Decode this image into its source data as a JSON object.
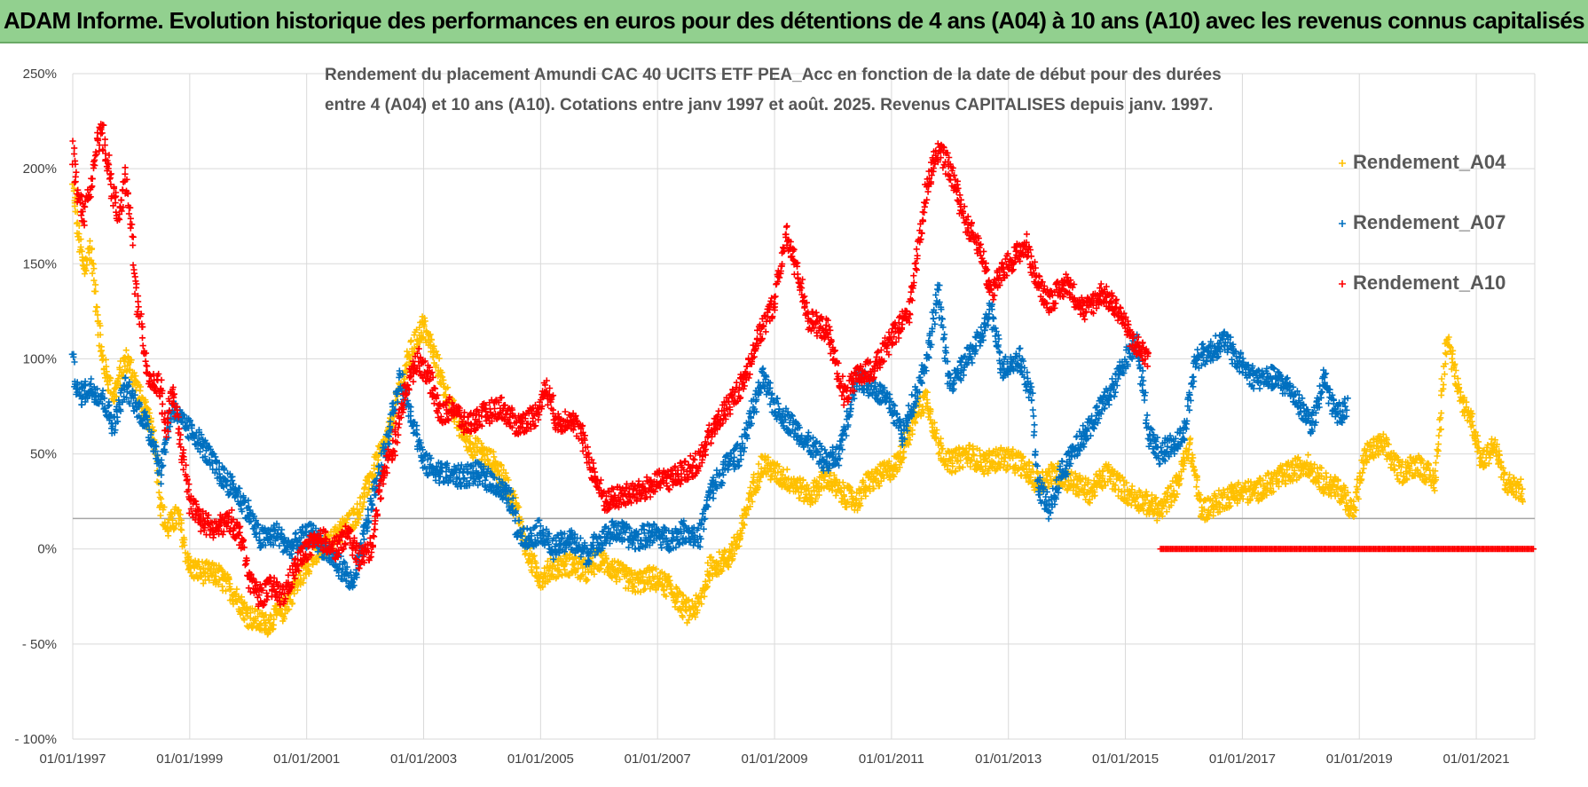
{
  "header": {
    "title": "ADAM Informe. Evolution historique des performances en euros pour des détentions de 4 ans (A04) à 10 ans (A10) avec les revenus connus capitalisés"
  },
  "chart_data": {
    "type": "scatter",
    "subtitle_lines": [
      "Rendement du placement Amundi CAC 40 UCITS ETF PEA_Acc en fonction de la date de début pour des durées",
      "entre 4 (A04) et 10 ans (A10).  Cotations entre janv 1997 et août. 2025. Revenus CAPITALISES depuis janv. 1997."
    ],
    "x_ticks": [
      "01/01/1997",
      "01/01/1999",
      "01/01/2001",
      "01/01/2003",
      "01/01/2005",
      "01/01/2007",
      "01/01/2009",
      "01/01/2011",
      "01/01/2013",
      "01/01/2015",
      "01/01/2017",
      "01/01/2019",
      "01/01/2021"
    ],
    "y_ticks": [
      "250%",
      "200%",
      "150%",
      "100%",
      "50%",
      "0%",
      "- 50%",
      "- 100%"
    ],
    "x_range": [
      1997.0,
      2022.0
    ],
    "ylim": [
      -100,
      250
    ],
    "reference_line_y": 16,
    "grid": true,
    "legend_position": "top-right",
    "series": [
      {
        "name": "Rendement_A04",
        "color": "#ffc000",
        "points": [
          [
            1997.0,
            190
          ],
          [
            1997.1,
            165
          ],
          [
            1997.2,
            145
          ],
          [
            1997.3,
            160
          ],
          [
            1997.5,
            100
          ],
          [
            1997.7,
            80
          ],
          [
            1997.9,
            100
          ],
          [
            1998.0,
            95
          ],
          [
            1998.2,
            75
          ],
          [
            1998.4,
            60
          ],
          [
            1998.5,
            25
          ],
          [
            1998.6,
            10
          ],
          [
            1998.8,
            18
          ],
          [
            1999.0,
            -10
          ],
          [
            1999.2,
            -12
          ],
          [
            1999.5,
            -14
          ],
          [
            1999.8,
            -25
          ],
          [
            2000.0,
            -35
          ],
          [
            2000.3,
            -40
          ],
          [
            2000.6,
            -32
          ],
          [
            2000.8,
            -20
          ],
          [
            2001.0,
            -8
          ],
          [
            2001.3,
            0
          ],
          [
            2001.6,
            10
          ],
          [
            2001.9,
            20
          ],
          [
            2002.1,
            38
          ],
          [
            2002.4,
            60
          ],
          [
            2002.6,
            85
          ],
          [
            2002.8,
            105
          ],
          [
            2003.0,
            118
          ],
          [
            2003.2,
            100
          ],
          [
            2003.4,
            80
          ],
          [
            2003.6,
            65
          ],
          [
            2003.8,
            55
          ],
          [
            2004.0,
            50
          ],
          [
            2004.2,
            45
          ],
          [
            2004.4,
            35
          ],
          [
            2004.6,
            20
          ],
          [
            2004.8,
            -5
          ],
          [
            2005.0,
            -15
          ],
          [
            2005.2,
            -10
          ],
          [
            2005.5,
            -8
          ],
          [
            2005.8,
            -12
          ],
          [
            2006.0,
            -5
          ],
          [
            2006.3,
            -12
          ],
          [
            2006.6,
            -18
          ],
          [
            2006.9,
            -15
          ],
          [
            2007.2,
            -20
          ],
          [
            2007.5,
            -33
          ],
          [
            2007.7,
            -30
          ],
          [
            2007.9,
            -10
          ],
          [
            2008.2,
            -5
          ],
          [
            2008.4,
            5
          ],
          [
            2008.6,
            30
          ],
          [
            2008.8,
            45
          ],
          [
            2009.0,
            40
          ],
          [
            2009.3,
            35
          ],
          [
            2009.6,
            28
          ],
          [
            2009.9,
            38
          ],
          [
            2010.1,
            30
          ],
          [
            2010.4,
            25
          ],
          [
            2010.6,
            35
          ],
          [
            2010.9,
            40
          ],
          [
            2011.1,
            45
          ],
          [
            2011.4,
            70
          ],
          [
            2011.6,
            80
          ],
          [
            2011.8,
            55
          ],
          [
            2012.0,
            45
          ],
          [
            2012.3,
            50
          ],
          [
            2012.6,
            45
          ],
          [
            2012.9,
            48
          ],
          [
            2013.2,
            45
          ],
          [
            2013.5,
            35
          ],
          [
            2013.8,
            40
          ],
          [
            2014.1,
            35
          ],
          [
            2014.4,
            30
          ],
          [
            2014.7,
            40
          ],
          [
            2015.0,
            30
          ],
          [
            2015.3,
            25
          ],
          [
            2015.6,
            20
          ],
          [
            2015.9,
            35
          ],
          [
            2016.1,
            55
          ],
          [
            2016.3,
            20
          ],
          [
            2016.6,
            25
          ],
          [
            2016.9,
            30
          ],
          [
            2017.2,
            30
          ],
          [
            2017.5,
            35
          ],
          [
            2017.8,
            40
          ],
          [
            2018.1,
            45
          ],
          [
            2018.4,
            35
          ],
          [
            2018.7,
            30
          ],
          [
            2018.9,
            20
          ],
          [
            2019.1,
            50
          ],
          [
            2019.4,
            55
          ],
          [
            2019.7,
            40
          ],
          [
            2020.0,
            45
          ],
          [
            2020.3,
            35
          ],
          [
            2020.5,
            115
          ],
          [
            2020.7,
            80
          ],
          [
            2020.9,
            70
          ],
          [
            2021.1,
            45
          ],
          [
            2021.3,
            55
          ],
          [
            2021.5,
            35
          ],
          [
            2021.8,
            30
          ]
        ]
      },
      {
        "name": "Rendement_A07",
        "color": "#0070c0",
        "points": [
          [
            1997.0,
            98
          ],
          [
            1997.1,
            80
          ],
          [
            1997.3,
            85
          ],
          [
            1997.5,
            80
          ],
          [
            1997.7,
            65
          ],
          [
            1997.9,
            85
          ],
          [
            1998.0,
            80
          ],
          [
            1998.2,
            70
          ],
          [
            1998.4,
            55
          ],
          [
            1998.5,
            40
          ],
          [
            1998.7,
            75
          ],
          [
            1998.9,
            65
          ],
          [
            1999.1,
            60
          ],
          [
            1999.3,
            50
          ],
          [
            1999.5,
            40
          ],
          [
            1999.8,
            30
          ],
          [
            2000.0,
            20
          ],
          [
            2000.2,
            5
          ],
          [
            2000.5,
            8
          ],
          [
            2000.7,
            0
          ],
          [
            2000.9,
            5
          ],
          [
            2001.1,
            8
          ],
          [
            2001.3,
            0
          ],
          [
            2001.6,
            -10
          ],
          [
            2001.8,
            -20
          ],
          [
            2002.0,
            10
          ],
          [
            2002.2,
            35
          ],
          [
            2002.4,
            60
          ],
          [
            2002.6,
            90
          ],
          [
            2002.8,
            70
          ],
          [
            2003.0,
            45
          ],
          [
            2003.3,
            40
          ],
          [
            2003.6,
            38
          ],
          [
            2003.9,
            40
          ],
          [
            2004.2,
            35
          ],
          [
            2004.5,
            25
          ],
          [
            2004.6,
            10
          ],
          [
            2004.8,
            5
          ],
          [
            2005.0,
            10
          ],
          [
            2005.2,
            0
          ],
          [
            2005.5,
            5
          ],
          [
            2005.8,
            -3
          ],
          [
            2006.0,
            5
          ],
          [
            2006.3,
            10
          ],
          [
            2006.6,
            5
          ],
          [
            2006.9,
            8
          ],
          [
            2007.2,
            5
          ],
          [
            2007.5,
            10
          ],
          [
            2007.7,
            5
          ],
          [
            2007.9,
            30
          ],
          [
            2008.2,
            45
          ],
          [
            2008.4,
            50
          ],
          [
            2008.6,
            70
          ],
          [
            2008.8,
            90
          ],
          [
            2009.0,
            75
          ],
          [
            2009.3,
            65
          ],
          [
            2009.6,
            55
          ],
          [
            2009.9,
            45
          ],
          [
            2010.1,
            50
          ],
          [
            2010.4,
            90
          ],
          [
            2010.7,
            85
          ],
          [
            2011.0,
            75
          ],
          [
            2011.2,
            60
          ],
          [
            2011.4,
            80
          ],
          [
            2011.6,
            100
          ],
          [
            2011.8,
            135
          ],
          [
            2012.0,
            85
          ],
          [
            2012.2,
            95
          ],
          [
            2012.5,
            110
          ],
          [
            2012.7,
            125
          ],
          [
            2012.9,
            95
          ],
          [
            2013.2,
            100
          ],
          [
            2013.4,
            80
          ],
          [
            2013.5,
            35
          ],
          [
            2013.7,
            20
          ],
          [
            2013.9,
            40
          ],
          [
            2014.2,
            55
          ],
          [
            2014.5,
            70
          ],
          [
            2014.8,
            85
          ],
          [
            2015.0,
            100
          ],
          [
            2015.2,
            110
          ],
          [
            2015.4,
            60
          ],
          [
            2015.6,
            50
          ],
          [
            2015.8,
            55
          ],
          [
            2016.0,
            60
          ],
          [
            2016.2,
            100
          ],
          [
            2016.5,
            105
          ],
          [
            2016.7,
            110
          ],
          [
            2016.9,
            100
          ],
          [
            2017.2,
            90
          ],
          [
            2017.5,
            90
          ],
          [
            2017.8,
            85
          ],
          [
            2018.0,
            75
          ],
          [
            2018.2,
            65
          ],
          [
            2018.4,
            90
          ],
          [
            2018.6,
            70
          ],
          [
            2018.8,
            75
          ]
        ]
      },
      {
        "name": "Rendement_A10",
        "color": "#ff0000",
        "points": [
          [
            1997.0,
            210
          ],
          [
            1997.1,
            185
          ],
          [
            1997.2,
            175
          ],
          [
            1997.4,
            210
          ],
          [
            1997.5,
            220
          ],
          [
            1997.7,
            185
          ],
          [
            1997.8,
            175
          ],
          [
            1997.9,
            195
          ],
          [
            1998.0,
            170
          ],
          [
            1998.1,
            130
          ],
          [
            1998.3,
            90
          ],
          [
            1998.5,
            85
          ],
          [
            1998.6,
            60
          ],
          [
            1998.7,
            85
          ],
          [
            1998.9,
            45
          ],
          [
            1999.0,
            25
          ],
          [
            1999.2,
            15
          ],
          [
            1999.4,
            10
          ],
          [
            1999.7,
            15
          ],
          [
            1999.9,
            5
          ],
          [
            2000.0,
            -15
          ],
          [
            2000.2,
            -25
          ],
          [
            2000.4,
            -20
          ],
          [
            2000.6,
            -25
          ],
          [
            2000.8,
            -10
          ],
          [
            2001.0,
            0
          ],
          [
            2001.3,
            5
          ],
          [
            2001.5,
            0
          ],
          [
            2001.7,
            8
          ],
          [
            2001.9,
            -5
          ],
          [
            2002.1,
            0
          ],
          [
            2002.3,
            40
          ],
          [
            2002.5,
            55
          ],
          [
            2002.7,
            85
          ],
          [
            2002.9,
            100
          ],
          [
            2003.1,
            90
          ],
          [
            2003.3,
            70
          ],
          [
            2003.5,
            75
          ],
          [
            2003.7,
            65
          ],
          [
            2004.0,
            70
          ],
          [
            2004.3,
            75
          ],
          [
            2004.6,
            65
          ],
          [
            2004.9,
            70
          ],
          [
            2005.1,
            85
          ],
          [
            2005.3,
            65
          ],
          [
            2005.5,
            70
          ],
          [
            2005.7,
            60
          ],
          [
            2005.9,
            40
          ],
          [
            2006.1,
            25
          ],
          [
            2006.4,
            28
          ],
          [
            2006.7,
            30
          ],
          [
            2007.0,
            35
          ],
          [
            2007.3,
            38
          ],
          [
            2007.5,
            42
          ],
          [
            2007.7,
            45
          ],
          [
            2007.9,
            60
          ],
          [
            2008.1,
            70
          ],
          [
            2008.3,
            80
          ],
          [
            2008.5,
            90
          ],
          [
            2008.7,
            110
          ],
          [
            2009.0,
            130
          ],
          [
            2009.2,
            165
          ],
          [
            2009.4,
            145
          ],
          [
            2009.6,
            120
          ],
          [
            2009.9,
            115
          ],
          [
            2010.2,
            80
          ],
          [
            2010.4,
            90
          ],
          [
            2010.7,
            95
          ],
          [
            2011.0,
            110
          ],
          [
            2011.3,
            125
          ],
          [
            2011.6,
            190
          ],
          [
            2011.8,
            210
          ],
          [
            2012.0,
            200
          ],
          [
            2012.3,
            170
          ],
          [
            2012.5,
            160
          ],
          [
            2012.7,
            135
          ],
          [
            2013.0,
            150
          ],
          [
            2013.3,
            160
          ],
          [
            2013.5,
            140
          ],
          [
            2013.7,
            130
          ],
          [
            2014.0,
            140
          ],
          [
            2014.3,
            125
          ],
          [
            2014.6,
            135
          ],
          [
            2014.9,
            125
          ],
          [
            2015.1,
            110
          ],
          [
            2015.4,
            100
          ]
        ]
      },
      {
        "name": "",
        "color": "#ff0000",
        "note_flat_zero_from": 2015.6,
        "points": [
          [
            2015.6,
            0
          ],
          [
            2022.0,
            0
          ]
        ]
      }
    ]
  }
}
